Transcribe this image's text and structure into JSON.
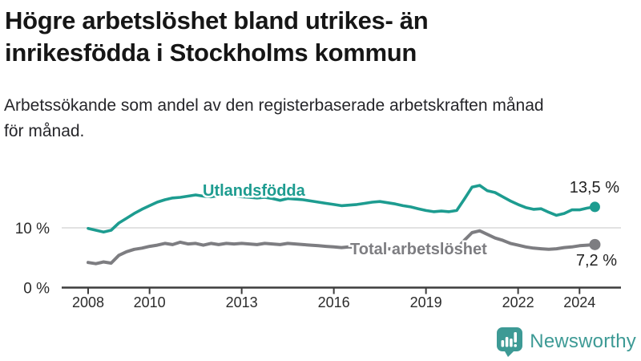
{
  "header": {
    "title_lines": [
      "Högre arbetslöshet bland utrikes- än",
      "inrikesfödda i Stockholms kommun"
    ],
    "subtitle_lines": [
      "Arbetssökande som andel av den registerbaserade arbetskraften månad",
      "för månad."
    ]
  },
  "chart_data": {
    "type": "line",
    "title": "Högre arbetslöshet bland utrikes- än inrikesfödda i Stockholms kommun",
    "xlabel": "",
    "ylabel": "Arbetssökande som andel av den registerbaserade arbetskraften",
    "unit": "%",
    "xlim": [
      2007.15,
      2025.3
    ],
    "ylim": [
      0,
      19.5
    ],
    "grid": "single-horizontal-line-at-10",
    "legend_position": "inline-labels-on-lines",
    "x_ticks": [
      2008,
      2010,
      2013,
      2016,
      2019,
      2022,
      2024
    ],
    "y_ticks": [
      {
        "value": 0,
        "label": "0 %"
      },
      {
        "value": 10,
        "label": "10 %"
      }
    ],
    "series": [
      {
        "name": "Utlandsfödda",
        "color": "#1d9c90",
        "end_label": "13,5 %",
        "end_value": 13.5,
        "points": [
          [
            2008,
            9.9
          ],
          [
            2008.25,
            9.6
          ],
          [
            2008.5,
            9.3
          ],
          [
            2008.75,
            9.6
          ],
          [
            2009,
            10.8
          ],
          [
            2009.25,
            11.6
          ],
          [
            2009.5,
            12.4
          ],
          [
            2009.75,
            13.1
          ],
          [
            2010,
            13.7
          ],
          [
            2010.25,
            14.3
          ],
          [
            2010.5,
            14.7
          ],
          [
            2010.75,
            15.0
          ],
          [
            2011,
            15.1
          ],
          [
            2011.25,
            15.3
          ],
          [
            2011.5,
            15.5
          ],
          [
            2011.75,
            15.3
          ],
          [
            2012,
            15.2
          ],
          [
            2012.25,
            15.4
          ],
          [
            2012.5,
            15.5
          ],
          [
            2012.75,
            15.3
          ],
          [
            2013,
            15.2
          ],
          [
            2013.25,
            15.1
          ],
          [
            2013.5,
            15.0
          ],
          [
            2013.75,
            15.1
          ],
          [
            2014,
            14.9
          ],
          [
            2014.25,
            14.6
          ],
          [
            2014.5,
            14.9
          ],
          [
            2014.75,
            14.8
          ],
          [
            2015,
            14.7
          ],
          [
            2015.25,
            14.5
          ],
          [
            2015.5,
            14.3
          ],
          [
            2015.75,
            14.1
          ],
          [
            2016,
            13.9
          ],
          [
            2016.25,
            13.7
          ],
          [
            2016.5,
            13.8
          ],
          [
            2016.75,
            13.9
          ],
          [
            2017,
            14.1
          ],
          [
            2017.25,
            14.3
          ],
          [
            2017.5,
            14.4
          ],
          [
            2017.75,
            14.2
          ],
          [
            2018,
            14.0
          ],
          [
            2018.25,
            13.7
          ],
          [
            2018.5,
            13.5
          ],
          [
            2018.75,
            13.2
          ],
          [
            2019,
            12.9
          ],
          [
            2019.25,
            12.7
          ],
          [
            2019.5,
            12.8
          ],
          [
            2019.75,
            12.7
          ],
          [
            2020,
            12.9
          ],
          [
            2020.25,
            14.8
          ],
          [
            2020.5,
            16.8
          ],
          [
            2020.75,
            17.1
          ],
          [
            2021,
            16.2
          ],
          [
            2021.25,
            15.9
          ],
          [
            2021.5,
            15.2
          ],
          [
            2021.75,
            14.5
          ],
          [
            2022,
            13.9
          ],
          [
            2022.25,
            13.4
          ],
          [
            2022.5,
            13.1
          ],
          [
            2022.75,
            13.2
          ],
          [
            2023,
            12.6
          ],
          [
            2023.25,
            12.1
          ],
          [
            2023.5,
            12.4
          ],
          [
            2023.75,
            13.0
          ],
          [
            2024,
            13.0
          ],
          [
            2024.25,
            13.3
          ],
          [
            2024.5,
            13.5
          ]
        ]
      },
      {
        "name": "Total arbetslöshet",
        "color": "#7d7d81",
        "end_label": "7,2 %",
        "end_value": 7.2,
        "points": [
          [
            2008,
            4.2
          ],
          [
            2008.25,
            4.0
          ],
          [
            2008.5,
            4.3
          ],
          [
            2008.75,
            4.1
          ],
          [
            2009,
            5.4
          ],
          [
            2009.25,
            6.0
          ],
          [
            2009.5,
            6.4
          ],
          [
            2009.75,
            6.6
          ],
          [
            2010,
            6.9
          ],
          [
            2010.25,
            7.1
          ],
          [
            2010.5,
            7.4
          ],
          [
            2010.75,
            7.2
          ],
          [
            2011,
            7.6
          ],
          [
            2011.25,
            7.3
          ],
          [
            2011.5,
            7.4
          ],
          [
            2011.75,
            7.1
          ],
          [
            2012,
            7.4
          ],
          [
            2012.25,
            7.2
          ],
          [
            2012.5,
            7.4
          ],
          [
            2012.75,
            7.3
          ],
          [
            2013,
            7.4
          ],
          [
            2013.25,
            7.3
          ],
          [
            2013.5,
            7.2
          ],
          [
            2013.75,
            7.4
          ],
          [
            2014,
            7.3
          ],
          [
            2014.25,
            7.2
          ],
          [
            2014.5,
            7.4
          ],
          [
            2014.75,
            7.3
          ],
          [
            2015,
            7.2
          ],
          [
            2015.25,
            7.1
          ],
          [
            2015.5,
            7.0
          ],
          [
            2015.75,
            6.9
          ],
          [
            2016,
            6.8
          ],
          [
            2016.25,
            6.7
          ],
          [
            2016.5,
            6.8
          ],
          [
            2016.75,
            6.7
          ],
          [
            2017,
            6.8
          ],
          [
            2017.25,
            6.7
          ],
          [
            2017.5,
            6.6
          ],
          [
            2017.75,
            6.5
          ],
          [
            2018,
            6.4
          ],
          [
            2018.25,
            6.3
          ],
          [
            2018.5,
            6.2
          ],
          [
            2018.75,
            6.3
          ],
          [
            2019,
            6.2
          ],
          [
            2019.25,
            6.3
          ],
          [
            2019.5,
            6.4
          ],
          [
            2019.75,
            6.4
          ],
          [
            2020,
            6.5
          ],
          [
            2020.25,
            7.9
          ],
          [
            2020.5,
            9.2
          ],
          [
            2020.75,
            9.5
          ],
          [
            2021,
            8.9
          ],
          [
            2021.25,
            8.3
          ],
          [
            2021.5,
            7.9
          ],
          [
            2021.75,
            7.4
          ],
          [
            2022,
            7.1
          ],
          [
            2022.25,
            6.8
          ],
          [
            2022.5,
            6.6
          ],
          [
            2022.75,
            6.5
          ],
          [
            2023,
            6.4
          ],
          [
            2023.25,
            6.5
          ],
          [
            2023.5,
            6.7
          ],
          [
            2023.75,
            6.8
          ],
          [
            2024,
            7.0
          ],
          [
            2024.25,
            7.1
          ],
          [
            2024.5,
            7.2
          ]
        ]
      }
    ]
  },
  "footer": {
    "brand": "Newsworthy",
    "brand_color": "#3d9a95"
  }
}
